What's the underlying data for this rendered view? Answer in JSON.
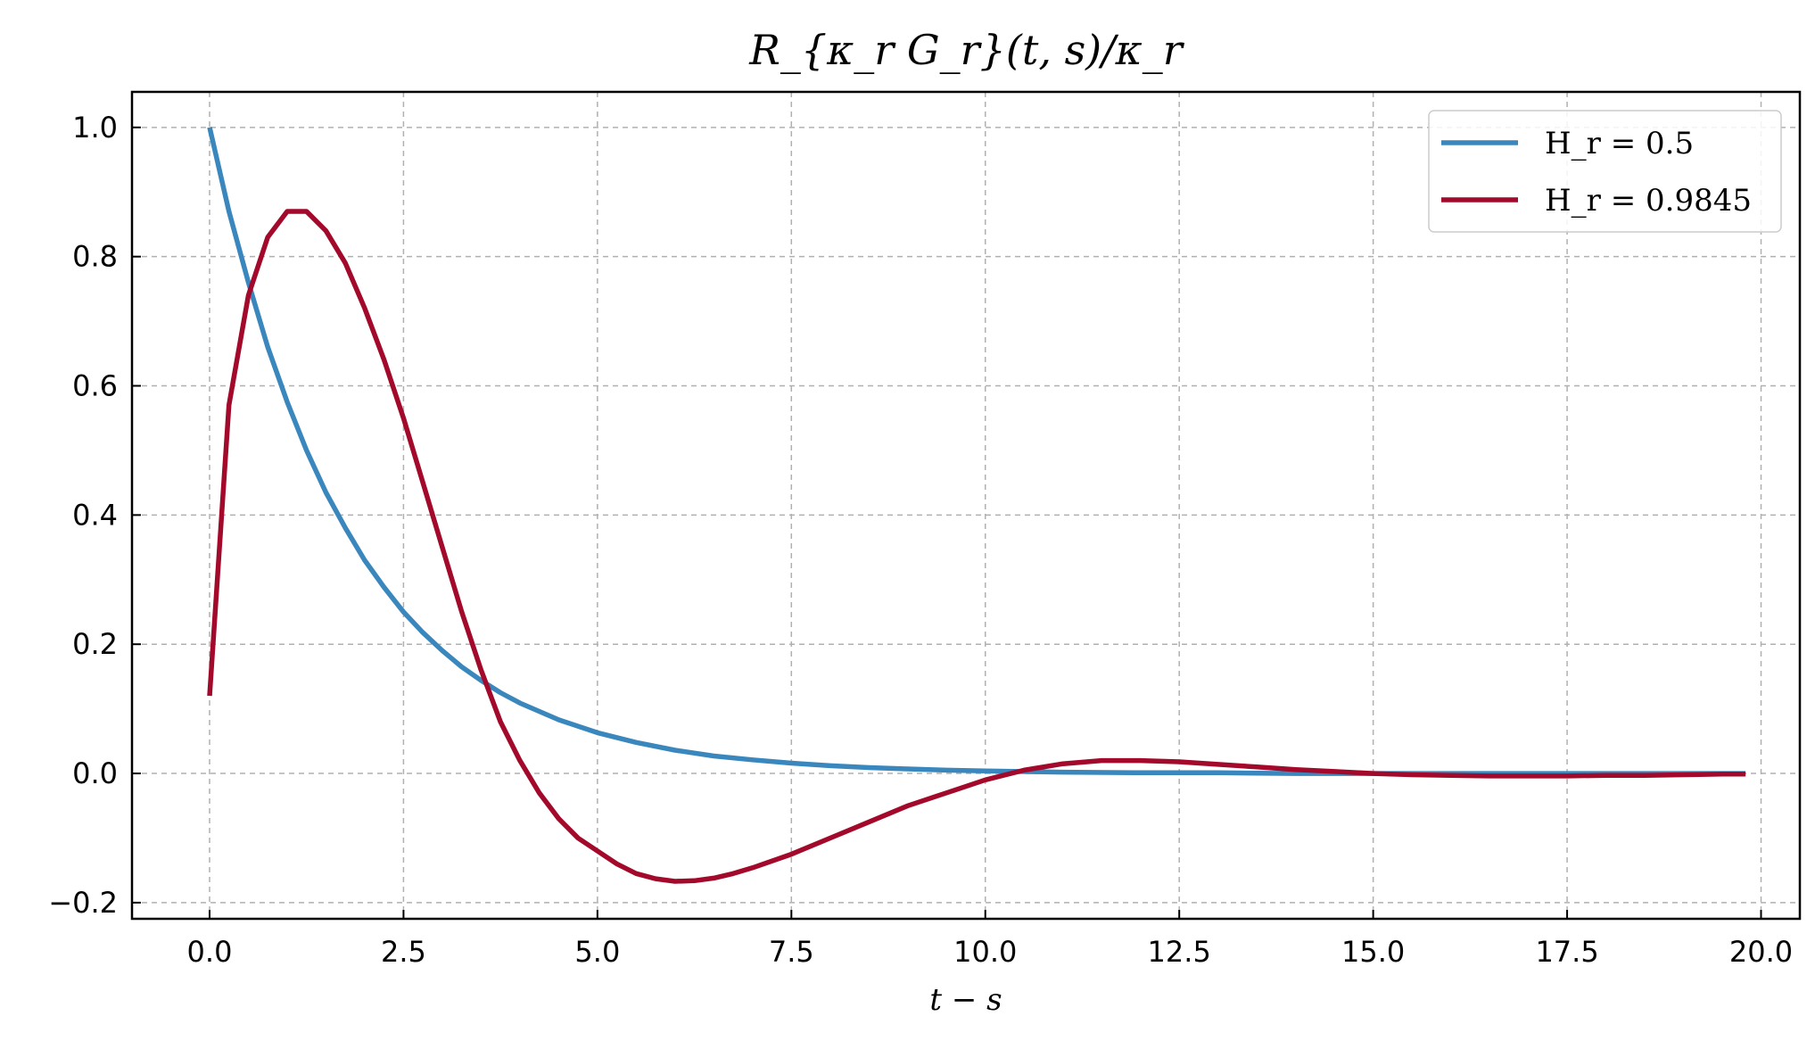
{
  "chart_data": {
    "type": "line",
    "title": "R_{κ_r G_r}(t, s)/κ_r",
    "xlabel": "t − s",
    "ylabel": "",
    "xlim": [
      -1.0,
      20.5
    ],
    "ylim": [
      -0.225,
      1.055
    ],
    "xticks": [
      0.0,
      2.5,
      5.0,
      7.5,
      10.0,
      12.5,
      15.0,
      17.5,
      20.0
    ],
    "xtick_labels": [
      "0.0",
      "2.5",
      "5.0",
      "7.5",
      "10.0",
      "12.5",
      "15.0",
      "17.5",
      "20.0"
    ],
    "yticks": [
      -0.2,
      0.0,
      0.2,
      0.4,
      0.6,
      0.8,
      1.0
    ],
    "ytick_labels": [
      "−0.2",
      "0.0",
      "0.2",
      "0.4",
      "0.6",
      "0.8",
      "1.0"
    ],
    "grid": true,
    "legend_position": "top-right",
    "series": [
      {
        "name": "H_r = 0.5",
        "color": "#3a87bd",
        "x": [
          0.0,
          0.25,
          0.5,
          0.75,
          1.0,
          1.25,
          1.5,
          1.75,
          2.0,
          2.25,
          2.5,
          2.75,
          3.0,
          3.25,
          3.5,
          3.75,
          4.0,
          4.5,
          5.0,
          5.5,
          6.0,
          6.5,
          7.0,
          7.5,
          8.0,
          8.5,
          9.0,
          9.5,
          10.0,
          11.0,
          12.0,
          13.0,
          14.0,
          15.0,
          16.0,
          17.0,
          18.0,
          19.0,
          19.8
        ],
        "y": [
          1.0,
          0.87,
          0.76,
          0.66,
          0.575,
          0.5,
          0.435,
          0.38,
          0.33,
          0.288,
          0.25,
          0.218,
          0.19,
          0.165,
          0.144,
          0.125,
          0.109,
          0.083,
          0.063,
          0.048,
          0.036,
          0.027,
          0.021,
          0.016,
          0.012,
          0.009,
          0.007,
          0.005,
          0.004,
          0.002,
          0.001,
          0.001,
          0.0,
          0.0,
          0.0,
          0.0,
          0.0,
          0.0,
          0.0
        ]
      },
      {
        "name": "H_r = 0.9845",
        "color": "#a3092a",
        "x": [
          0.0,
          0.25,
          0.5,
          0.75,
          1.0,
          1.25,
          1.5,
          1.75,
          2.0,
          2.25,
          2.5,
          2.75,
          3.0,
          3.25,
          3.5,
          3.75,
          4.0,
          4.25,
          4.5,
          4.75,
          5.0,
          5.25,
          5.5,
          5.75,
          6.0,
          6.25,
          6.5,
          6.75,
          7.0,
          7.5,
          8.0,
          8.5,
          9.0,
          9.5,
          10.0,
          10.5,
          11.0,
          11.5,
          12.0,
          12.5,
          13.0,
          13.5,
          14.0,
          14.5,
          15.0,
          15.5,
          16.0,
          16.5,
          17.0,
          17.5,
          18.0,
          18.5,
          19.0,
          19.5,
          19.8
        ],
        "y": [
          0.12,
          0.57,
          0.74,
          0.83,
          0.87,
          0.87,
          0.84,
          0.79,
          0.72,
          0.64,
          0.55,
          0.45,
          0.35,
          0.25,
          0.16,
          0.08,
          0.02,
          -0.03,
          -0.07,
          -0.1,
          -0.12,
          -0.14,
          -0.155,
          -0.163,
          -0.167,
          -0.166,
          -0.162,
          -0.155,
          -0.146,
          -0.125,
          -0.1,
          -0.075,
          -0.05,
          -0.03,
          -0.01,
          0.005,
          0.015,
          0.02,
          0.02,
          0.018,
          0.014,
          0.01,
          0.006,
          0.003,
          0.0,
          -0.002,
          -0.003,
          -0.004,
          -0.004,
          -0.004,
          -0.003,
          -0.003,
          -0.002,
          -0.001,
          -0.001
        ]
      }
    ]
  }
}
